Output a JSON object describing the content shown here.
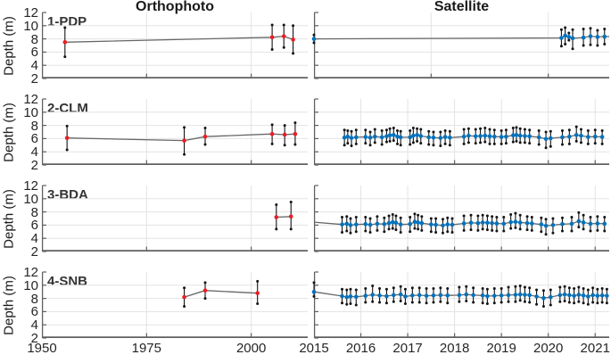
{
  "figure": {
    "background": "#ffffff",
    "column_titles": [
      "Orthophoto",
      "Satellite"
    ],
    "colors": {
      "ortho_marker": "#eb1c24",
      "sat_marker": "#0072bd",
      "trend_line": "#666666",
      "error_bar": "#141414",
      "grid": "#e3e3e3",
      "axis": "#606060",
      "text": "#262626"
    }
  },
  "axes": {
    "ylabel": "Depth (m)",
    "y_ticks": [
      "12",
      "10",
      "8",
      "6",
      "4",
      "2"
    ],
    "y_tick_values": [
      12,
      10,
      8,
      6,
      4,
      2
    ],
    "y_range": [
      2,
      12
    ],
    "ortho_x": {
      "range": [
        1950,
        2013.5
      ],
      "tick_labels": [
        "1950",
        "1975",
        "2000"
      ],
      "tick_years": [
        1950,
        1975,
        2000
      ],
      "grid_years": [
        1975,
        2000
      ]
    },
    "sat_x": {
      "range": [
        2015,
        2021.3
      ],
      "tick_labels": [
        "2015",
        "2016",
        "2017",
        "2018",
        "2019",
        "2020",
        "2021"
      ],
      "tick_years": [
        2015,
        2016,
        2017,
        2018,
        2019,
        2020,
        2021
      ],
      "grid_years": [
        2016,
        2017,
        2018,
        2019,
        2020,
        2021
      ]
    }
  },
  "chart_data": [
    {
      "row": 1,
      "label": "1-PDP",
      "type": "errorbar-line",
      "ortho": {
        "points": [
          [
            1955.5,
            7.5,
            5.3,
            9.7
          ],
          [
            2005,
            8.25,
            6.4,
            10.1
          ],
          [
            2007.8,
            8.4,
            6.7,
            10.1
          ],
          [
            2010,
            7.9,
            5.8,
            10.0
          ]
        ]
      },
      "sat": {
        "grid_years": [
          2017.5,
          2020
        ],
        "line_to_right_edge": true,
        "points": [
          [
            2015.0,
            8.0,
            7.4,
            8.6
          ],
          [
            2020.28,
            8.15,
            6.9,
            9.4
          ],
          [
            2020.36,
            8.5,
            7.2,
            9.7
          ],
          [
            2020.44,
            8.3,
            7.8,
            8.9
          ],
          [
            2020.52,
            8.1,
            6.5,
            9.4
          ],
          [
            2020.75,
            8.2,
            7.0,
            9.5
          ],
          [
            2020.9,
            8.4,
            7.1,
            9.6
          ],
          [
            2021.05,
            8.3,
            7.0,
            9.3
          ],
          [
            2021.2,
            8.35,
            7.2,
            9.5
          ]
        ]
      }
    },
    {
      "row": 2,
      "label": "2-CLM",
      "type": "errorbar-line",
      "ortho": {
        "points": [
          [
            1956,
            6.1,
            4.3,
            7.9
          ],
          [
            1984,
            5.7,
            3.6,
            7.7
          ],
          [
            1989,
            6.3,
            5.1,
            7.6
          ],
          [
            2005,
            6.7,
            5.2,
            8.1
          ],
          [
            2008,
            6.6,
            5.0,
            8.0
          ],
          [
            2010.5,
            6.7,
            5.1,
            8.4
          ]
        ]
      },
      "sat": {
        "points": [
          [
            2015.65,
            6.15,
            5.0,
            7.3
          ],
          [
            2015.72,
            6.3,
            5.3,
            7.2
          ],
          [
            2015.8,
            6.1,
            4.9,
            7.1
          ],
          [
            2015.9,
            6.2,
            5.2,
            7.3
          ],
          [
            2016.1,
            6.25,
            5.3,
            7.3
          ],
          [
            2016.2,
            6.15,
            5.0,
            7.0
          ],
          [
            2016.3,
            6.3,
            5.4,
            7.4
          ],
          [
            2016.45,
            6.2,
            5.1,
            7.2
          ],
          [
            2016.55,
            6.35,
            5.5,
            7.3
          ],
          [
            2016.62,
            6.5,
            5.6,
            7.5
          ],
          [
            2016.7,
            6.55,
            5.7,
            7.6
          ],
          [
            2016.78,
            6.3,
            5.2,
            7.2
          ],
          [
            2016.85,
            6.2,
            5.0,
            7.1
          ],
          [
            2017.05,
            6.2,
            5.1,
            7.2
          ],
          [
            2017.12,
            6.45,
            5.4,
            7.6
          ],
          [
            2017.2,
            6.55,
            5.6,
            7.5
          ],
          [
            2017.28,
            6.4,
            5.3,
            7.4
          ],
          [
            2017.45,
            6.2,
            5.1,
            7.1
          ],
          [
            2017.55,
            6.15,
            5.0,
            7.0
          ],
          [
            2017.7,
            6.1,
            4.9,
            7.0
          ],
          [
            2017.8,
            6.25,
            5.2,
            7.2
          ],
          [
            2017.9,
            6.15,
            5.0,
            7.1
          ],
          [
            2018.2,
            6.3,
            5.2,
            7.4
          ],
          [
            2018.3,
            6.45,
            5.4,
            7.5
          ],
          [
            2018.45,
            6.35,
            5.3,
            7.4
          ],
          [
            2018.55,
            6.4,
            5.4,
            7.5
          ],
          [
            2018.65,
            6.45,
            5.5,
            7.6
          ],
          [
            2018.75,
            6.35,
            5.2,
            7.4
          ],
          [
            2018.85,
            6.3,
            5.2,
            7.3
          ],
          [
            2019.0,
            6.25,
            5.2,
            7.2
          ],
          [
            2019.1,
            6.3,
            5.3,
            7.3
          ],
          [
            2019.25,
            6.5,
            5.5,
            7.6
          ],
          [
            2019.32,
            6.55,
            5.6,
            7.7
          ],
          [
            2019.4,
            6.45,
            5.4,
            7.5
          ],
          [
            2019.5,
            6.4,
            5.4,
            7.4
          ],
          [
            2019.6,
            6.35,
            5.3,
            7.3
          ],
          [
            2019.8,
            6.2,
            5.1,
            7.2
          ],
          [
            2019.95,
            5.95,
            4.6,
            7.0
          ],
          [
            2020.05,
            6.05,
            4.8,
            7.1
          ],
          [
            2020.3,
            6.2,
            5.1,
            7.2
          ],
          [
            2020.45,
            6.3,
            5.2,
            7.3
          ],
          [
            2020.6,
            6.55,
            5.6,
            7.8
          ],
          [
            2020.7,
            6.45,
            5.4,
            7.4
          ],
          [
            2020.85,
            6.25,
            5.2,
            7.2
          ],
          [
            2021.0,
            6.3,
            5.3,
            7.3
          ],
          [
            2021.15,
            6.25,
            5.2,
            7.2
          ]
        ]
      }
    },
    {
      "row": 3,
      "label": "3-BDA",
      "type": "errorbar-line",
      "ortho": {
        "points": [
          [
            2006,
            7.2,
            5.4,
            9.1
          ],
          [
            2009.5,
            7.3,
            5.4,
            9.5
          ]
        ]
      },
      "sat": {
        "lead": [
          2015.0,
          6.45
        ],
        "points": [
          [
            2015.6,
            6.1,
            4.9,
            7.2
          ],
          [
            2015.7,
            6.2,
            5.1,
            7.3
          ],
          [
            2015.78,
            6.0,
            4.8,
            7.0
          ],
          [
            2015.9,
            6.1,
            5.0,
            7.2
          ],
          [
            2016.1,
            6.15,
            5.1,
            7.2
          ],
          [
            2016.2,
            6.05,
            4.9,
            7.0
          ],
          [
            2016.35,
            6.2,
            5.2,
            7.3
          ],
          [
            2016.5,
            6.15,
            5.0,
            7.1
          ],
          [
            2016.6,
            6.3,
            5.4,
            7.4
          ],
          [
            2016.68,
            6.45,
            5.5,
            7.6
          ],
          [
            2016.75,
            6.35,
            5.3,
            7.4
          ],
          [
            2016.85,
            6.1,
            4.9,
            7.1
          ],
          [
            2017.05,
            6.15,
            5.0,
            7.2
          ],
          [
            2017.15,
            6.5,
            5.5,
            7.7
          ],
          [
            2017.22,
            6.4,
            5.4,
            7.5
          ],
          [
            2017.3,
            6.3,
            5.2,
            7.3
          ],
          [
            2017.5,
            6.1,
            5.0,
            7.0
          ],
          [
            2017.6,
            6.05,
            4.9,
            7.0
          ],
          [
            2017.75,
            5.95,
            4.8,
            6.9
          ],
          [
            2017.85,
            6.1,
            5.0,
            7.1
          ],
          [
            2017.95,
            6.05,
            4.9,
            7.0
          ],
          [
            2018.2,
            6.25,
            5.2,
            7.4
          ],
          [
            2018.35,
            6.35,
            5.3,
            7.5
          ],
          [
            2018.5,
            6.3,
            5.2,
            7.4
          ],
          [
            2018.6,
            6.4,
            5.4,
            7.5
          ],
          [
            2018.7,
            6.35,
            5.3,
            7.4
          ],
          [
            2018.8,
            6.3,
            5.2,
            7.3
          ],
          [
            2018.9,
            6.25,
            5.1,
            7.2
          ],
          [
            2019.05,
            6.2,
            5.1,
            7.2
          ],
          [
            2019.2,
            6.45,
            5.5,
            7.6
          ],
          [
            2019.3,
            6.5,
            5.6,
            7.8
          ],
          [
            2019.4,
            6.4,
            5.4,
            7.5
          ],
          [
            2019.55,
            6.3,
            5.3,
            7.3
          ],
          [
            2019.65,
            6.25,
            5.2,
            7.2
          ],
          [
            2019.85,
            6.1,
            5.0,
            7.1
          ],
          [
            2019.95,
            5.9,
            4.6,
            6.9
          ],
          [
            2020.1,
            6.0,
            4.8,
            7.0
          ],
          [
            2020.3,
            6.15,
            5.1,
            7.1
          ],
          [
            2020.5,
            6.2,
            5.1,
            7.2
          ],
          [
            2020.65,
            6.6,
            5.7,
            7.9
          ],
          [
            2020.75,
            6.4,
            5.4,
            7.5
          ],
          [
            2020.9,
            6.2,
            5.1,
            7.2
          ],
          [
            2021.05,
            6.25,
            5.2,
            7.3
          ],
          [
            2021.2,
            6.2,
            5.1,
            7.2
          ]
        ]
      }
    },
    {
      "row": 4,
      "label": "4-SNB",
      "type": "errorbar-line",
      "ortho": {
        "points": [
          [
            1984,
            8.2,
            6.8,
            9.6
          ],
          [
            1989,
            9.2,
            8.0,
            10.4
          ],
          [
            2001.5,
            8.8,
            7.2,
            10.6
          ]
        ]
      },
      "sat": {
        "points": [
          [
            2015.0,
            9.0,
            8.3,
            10.4
          ],
          [
            2015.6,
            8.35,
            7.3,
            9.4
          ],
          [
            2015.7,
            8.2,
            7.1,
            9.3
          ],
          [
            2015.78,
            8.3,
            7.2,
            9.4
          ],
          [
            2015.9,
            8.25,
            7.0,
            9.3
          ],
          [
            2016.1,
            8.4,
            7.4,
            9.5
          ],
          [
            2016.25,
            8.55,
            7.5,
            9.9
          ],
          [
            2016.4,
            8.45,
            7.4,
            9.5
          ],
          [
            2016.55,
            8.35,
            7.3,
            9.4
          ],
          [
            2016.7,
            8.5,
            7.5,
            9.6
          ],
          [
            2016.85,
            8.6,
            7.6,
            9.8
          ],
          [
            2016.95,
            8.3,
            7.2,
            9.4
          ],
          [
            2017.1,
            8.45,
            7.4,
            9.6
          ],
          [
            2017.25,
            8.5,
            7.4,
            9.6
          ],
          [
            2017.4,
            8.4,
            7.3,
            9.5
          ],
          [
            2017.55,
            8.45,
            7.4,
            9.5
          ],
          [
            2017.7,
            8.5,
            7.5,
            9.6
          ],
          [
            2017.85,
            8.45,
            7.3,
            9.5
          ],
          [
            2018.1,
            8.5,
            7.5,
            9.7
          ],
          [
            2018.25,
            8.6,
            7.6,
            9.8
          ],
          [
            2018.4,
            8.5,
            7.4,
            9.6
          ],
          [
            2018.6,
            8.45,
            7.3,
            9.5
          ],
          [
            2018.7,
            8.35,
            7.2,
            9.4
          ],
          [
            2018.85,
            8.4,
            7.3,
            9.5
          ],
          [
            2019.0,
            8.45,
            7.4,
            9.5
          ],
          [
            2019.15,
            8.5,
            7.5,
            9.7
          ],
          [
            2019.3,
            8.55,
            7.5,
            9.8
          ],
          [
            2019.4,
            8.6,
            7.7,
            9.9
          ],
          [
            2019.5,
            8.55,
            7.5,
            9.7
          ],
          [
            2019.6,
            8.5,
            7.4,
            9.6
          ],
          [
            2019.75,
            8.3,
            7.1,
            9.3
          ],
          [
            2019.9,
            8.05,
            6.8,
            9.2
          ],
          [
            2020.05,
            8.2,
            7.0,
            9.3
          ],
          [
            2020.25,
            8.5,
            7.5,
            9.7
          ],
          [
            2020.35,
            8.6,
            7.6,
            9.8
          ],
          [
            2020.45,
            8.5,
            7.4,
            9.6
          ],
          [
            2020.55,
            8.4,
            7.3,
            9.5
          ],
          [
            2020.65,
            8.55,
            7.5,
            9.7
          ],
          [
            2020.75,
            8.45,
            7.3,
            9.5
          ],
          [
            2020.85,
            8.3,
            7.1,
            9.3
          ],
          [
            2020.95,
            8.5,
            7.4,
            9.6
          ],
          [
            2021.05,
            8.4,
            7.3,
            9.4
          ],
          [
            2021.15,
            8.45,
            7.4,
            9.5
          ],
          [
            2021.25,
            8.4,
            7.3,
            9.4
          ]
        ]
      }
    }
  ]
}
